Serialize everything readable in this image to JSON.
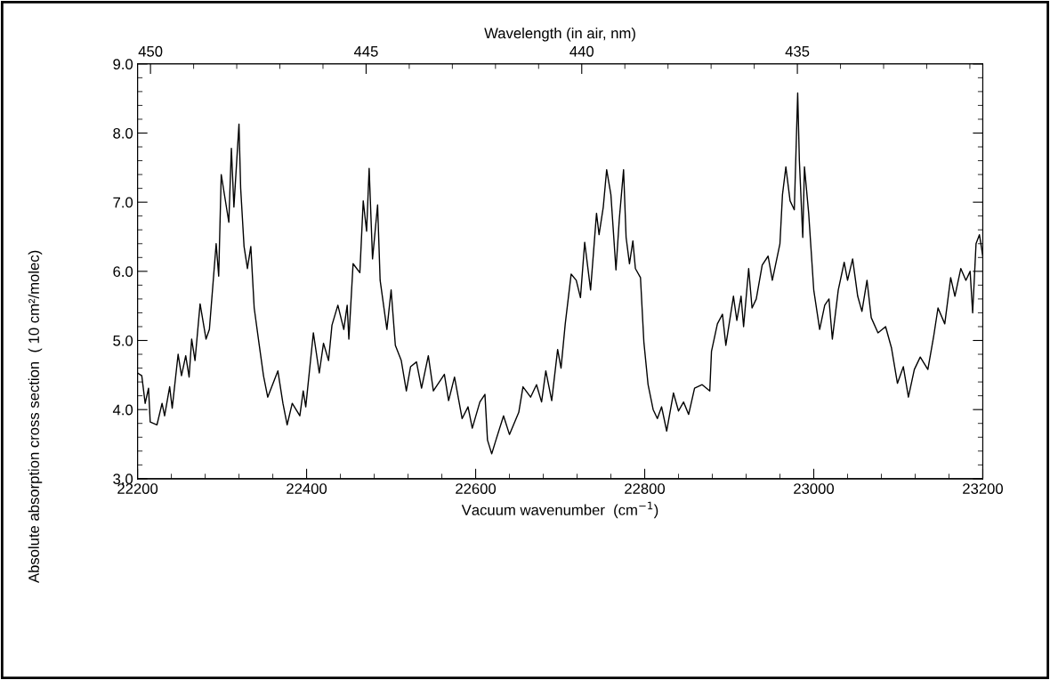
{
  "chart_data": {
    "type": "line",
    "xlabel": "Vacuum wavenumber  (cm$^{−1}$)",
    "ylabel": "Absolute absorption cross section  ( 10 cm²/molec)",
    "x2label": "Wavelength (in air, nm)",
    "xlim": [
      22200,
      23200
    ],
    "xticks": [
      22200,
      22400,
      22600,
      22800,
      23000,
      23200
    ],
    "x2lim": [
      450.3,
      430.7
    ],
    "x2ticks": [
      450,
      445,
      440,
      435
    ],
    "ylim": [
      3,
      9
    ],
    "yticks": [
      {
        "value": 3,
        "label": "3.0"
      },
      {
        "value": 4,
        "label": "4.0"
      },
      {
        "value": 5,
        "label": "5.0"
      },
      {
        "value": 6,
        "label": "6.0"
      },
      {
        "value": 7,
        "label": "7.0"
      },
      {
        "value": 8,
        "label": "8.0"
      },
      {
        "value": 9,
        "label": "9.0"
      }
    ],
    "grid": false,
    "legend": false,
    "marker": "none",
    "line_style": "solid",
    "series": [
      {
        "color": "#000000",
        "x": [
          22200,
          22205,
          22209,
          22213,
          22215,
          22223,
          22229,
          22232,
          22238,
          22241,
          22248,
          22252,
          22257,
          22261,
          22264,
          22268,
          22274,
          22281,
          22285,
          22293,
          22296,
          22299,
          22308,
          22311,
          22314,
          22320,
          22322,
          22326,
          22330,
          22334,
          22338,
          22344,
          22349,
          22354,
          22366,
          22372,
          22377,
          22383,
          22392,
          22396,
          22399,
          22408,
          22415,
          22420,
          22426,
          22430,
          22437,
          22444,
          22448,
          22450,
          22455,
          22463,
          22467,
          22471,
          22474,
          22478,
          22484,
          22487,
          22495,
          22500,
          22505,
          22512,
          22518,
          22523,
          22530,
          22536,
          22544,
          22550,
          22563,
          22568,
          22575,
          22584,
          22591,
          22596,
          22605,
          22611,
          22614,
          22619,
          22624,
          22633,
          22640,
          22651,
          22656,
          22665,
          22672,
          22678,
          22683,
          22690,
          22697,
          22701,
          22706,
          22713,
          22719,
          22724,
          22729,
          22736,
          22743,
          22746,
          22751,
          22755,
          22760,
          22766,
          22770,
          22775,
          22778,
          22782,
          22786,
          22789,
          22795,
          22799,
          22804,
          22810,
          22815,
          22820,
          22826,
          22834,
          22840,
          22846,
          22852,
          22859,
          22868,
          22877,
          22879,
          22886,
          22892,
          22896,
          22905,
          22909,
          22914,
          22917,
          22923,
          22927,
          22932,
          22939,
          22946,
          22951,
          22960,
          22963,
          22967,
          22972,
          22977,
          22981,
          22983,
          22987,
          22989,
          22994,
          23000,
          23007,
          23013,
          23018,
          23022,
          23029,
          23036,
          23040,
          23046,
          23052,
          23057,
          23063,
          23068,
          23076,
          23085,
          23092,
          23099,
          23106,
          23112,
          23119,
          23126,
          23135,
          23142,
          23147,
          23155,
          23162,
          23167,
          23174,
          23180,
          23185,
          23188,
          23192,
          23196,
          23200
        ],
        "values": [
          4.53,
          4.49,
          4.09,
          4.31,
          3.82,
          3.78,
          4.09,
          3.91,
          4.33,
          4.02,
          4.8,
          4.49,
          4.78,
          4.47,
          5.02,
          4.71,
          5.53,
          5.02,
          5.16,
          6.4,
          5.93,
          7.4,
          6.71,
          7.78,
          6.93,
          8.13,
          7.2,
          6.36,
          6.04,
          6.36,
          5.47,
          4.93,
          4.49,
          4.18,
          4.56,
          4.09,
          3.78,
          4.09,
          3.91,
          4.27,
          4.04,
          5.11,
          4.53,
          4.96,
          4.71,
          5.22,
          5.51,
          5.16,
          5.51,
          5.02,
          6.11,
          5.98,
          7.02,
          6.58,
          7.49,
          6.18,
          6.96,
          5.87,
          5.16,
          5.73,
          4.93,
          4.71,
          4.27,
          4.62,
          4.69,
          4.31,
          4.78,
          4.27,
          4.51,
          4.13,
          4.47,
          3.87,
          4.04,
          3.73,
          4.11,
          4.22,
          3.56,
          3.36,
          3.56,
          3.91,
          3.64,
          3.96,
          4.33,
          4.18,
          4.36,
          4.11,
          4.56,
          4.13,
          4.87,
          4.6,
          5.24,
          5.96,
          5.87,
          5.62,
          6.42,
          5.73,
          6.84,
          6.53,
          6.93,
          7.47,
          7.11,
          6.02,
          6.76,
          7.47,
          6.49,
          6.11,
          6.44,
          6.04,
          5.91,
          4.98,
          4.36,
          4.0,
          3.87,
          4.04,
          3.69,
          4.24,
          3.98,
          4.11,
          3.93,
          4.31,
          4.36,
          4.27,
          4.84,
          5.24,
          5.38,
          4.93,
          5.64,
          5.29,
          5.64,
          5.2,
          6.04,
          5.47,
          5.6,
          6.09,
          6.22,
          5.87,
          6.4,
          7.11,
          7.51,
          7.02,
          6.89,
          8.58,
          7.6,
          6.49,
          7.51,
          6.84,
          5.73,
          5.16,
          5.51,
          5.6,
          5.02,
          5.73,
          6.13,
          5.87,
          6.18,
          5.64,
          5.42,
          5.87,
          5.33,
          5.11,
          5.2,
          4.89,
          4.38,
          4.62,
          4.18,
          4.58,
          4.76,
          4.58,
          5.07,
          5.47,
          5.24,
          5.91,
          5.64,
          6.04,
          5.87,
          6.0,
          5.4,
          6.4,
          6.53,
          6.22
        ]
      }
    ]
  }
}
